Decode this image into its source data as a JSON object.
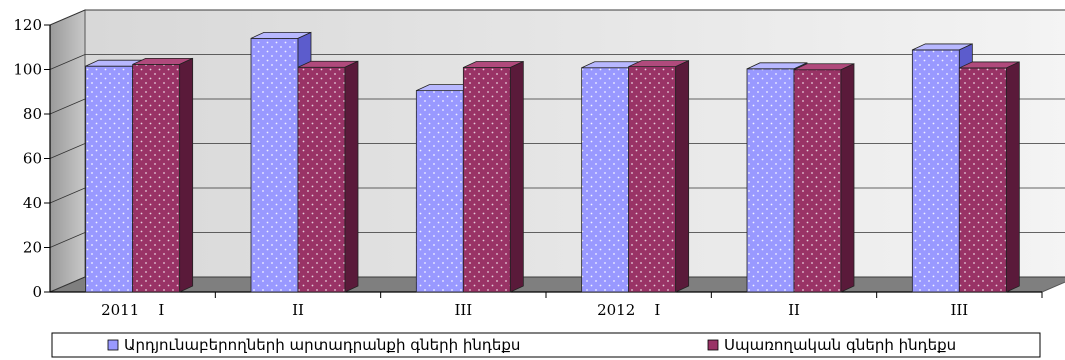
{
  "chart_data": {
    "type": "bar",
    "categories": [
      "2011    I",
      "II",
      "III",
      "2012    I",
      "II",
      "III"
    ],
    "series": [
      {
        "name": "Արդյունաբերողների արտադրանքի գների ինդեքս",
        "values": [
          101.5,
          114.0,
          90.5,
          100.8,
          100.3,
          108.8
        ],
        "color": "#9999ff"
      },
      {
        "name": "Սպառողական գների ինդեքս",
        "values": [
          102.3,
          101.0,
          100.9,
          101.3,
          99.9,
          100.7
        ],
        "color": "#993366"
      }
    ],
    "ylim": [
      0,
      120
    ],
    "yticks": [
      0,
      20,
      40,
      60,
      80,
      100,
      120
    ],
    "grid": true,
    "legend_position": "bottom",
    "bar_style": "3d-dotted"
  }
}
